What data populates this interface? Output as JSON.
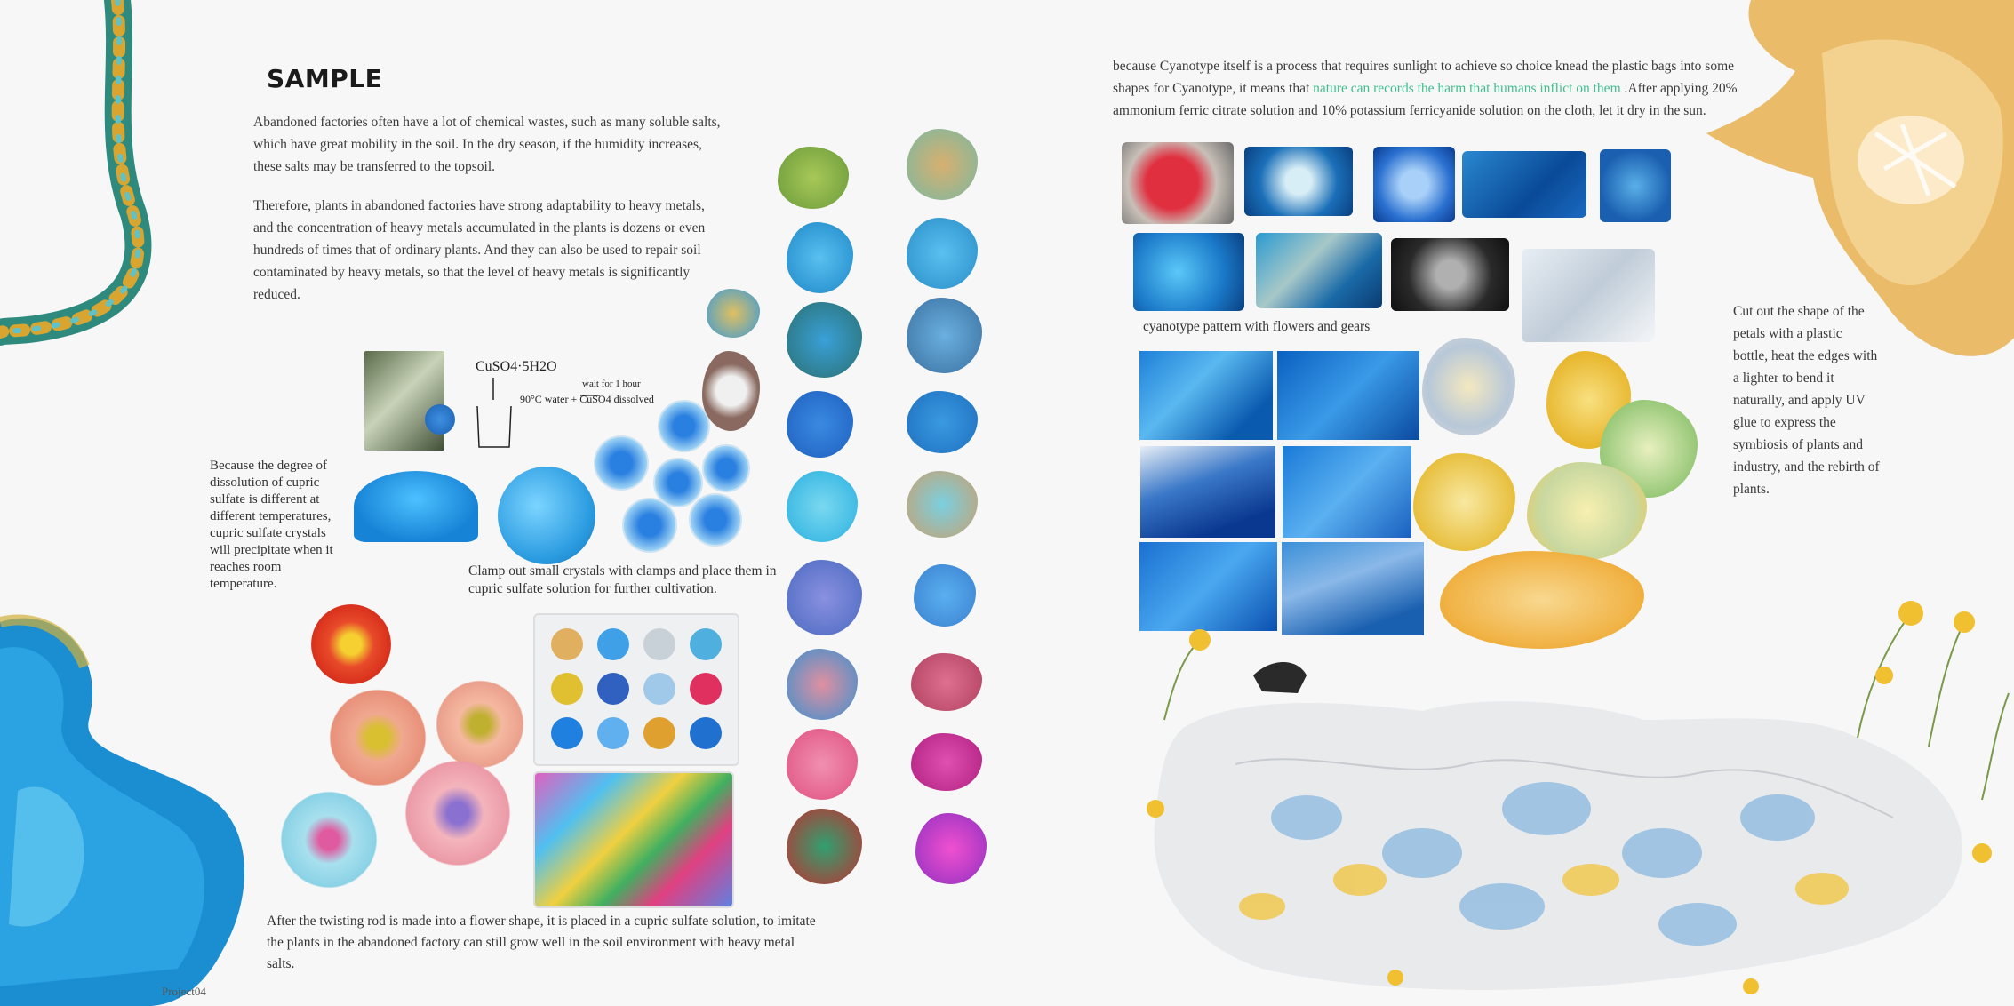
{
  "left": {
    "title": "SAMPLE",
    "intro_p1": "Abandoned factories often have a lot of chemical wastes, such as many soluble salts, which have great mobility in the soil. In the dry season, if the humidity increases, these salts may be transferred to the topsoil.",
    "intro_p2": "Therefore, plants in abandoned factories have strong adaptability to heavy metals, and the concentration of heavy metals accumulated in the plants is dozens or even hundreds of times that of ordinary plants. And they can also be used to repair soil contaminated by heavy metals, so that the level of heavy metals is significantly reduced.",
    "side_note": "Because the degree of dissolution of cupric sulfate is different at different temperatures, cupric sulfate crystals will precipitate when it reaches room temperature.",
    "clamp_caption": "Clamp out small crystals with clamps and place them in cupric sulfate solution for further cultivation.",
    "bottom_caption": "After the twisting rod is made into a flower shape, it is placed in a cupric sulfate solution, to imitate the plants in the abandoned factory can still grow well in the soil environment with heavy metal salts.",
    "sketch_formula": "CuSO4·5H2O",
    "sketch_note": "90°C water + CuSO4 dissolved",
    "sketch_wait": "wait for 1 hour",
    "footer": "Project04"
  },
  "right": {
    "intro_before": "because Cyanotype itself is a process that requires sunlight to achieve so choice knead the plastic bags into some shapes for Cyanotype, it means that ",
    "intro_highlight": "nature can records the harm that humans inflict on them",
    "intro_after": " .After applying 20% ammonium ferric citrate solution and 10% potassium ferricyanide solution on the cloth, let it dry in the sun.",
    "cyanotype_caption": "cyanotype pattern with flowers and gears",
    "cut_note": "Cut out the shape of the petals with a plastic bottle, heat the edges with a lighter to bend it naturally, and apply UV glue to express the symbiosis of plants and industry, and the rebirth of plants."
  },
  "colors": {
    "accent": "#3fbf8f",
    "copper_blue": "#1a8fd6",
    "cyanotype_blue": "#1763b0"
  }
}
